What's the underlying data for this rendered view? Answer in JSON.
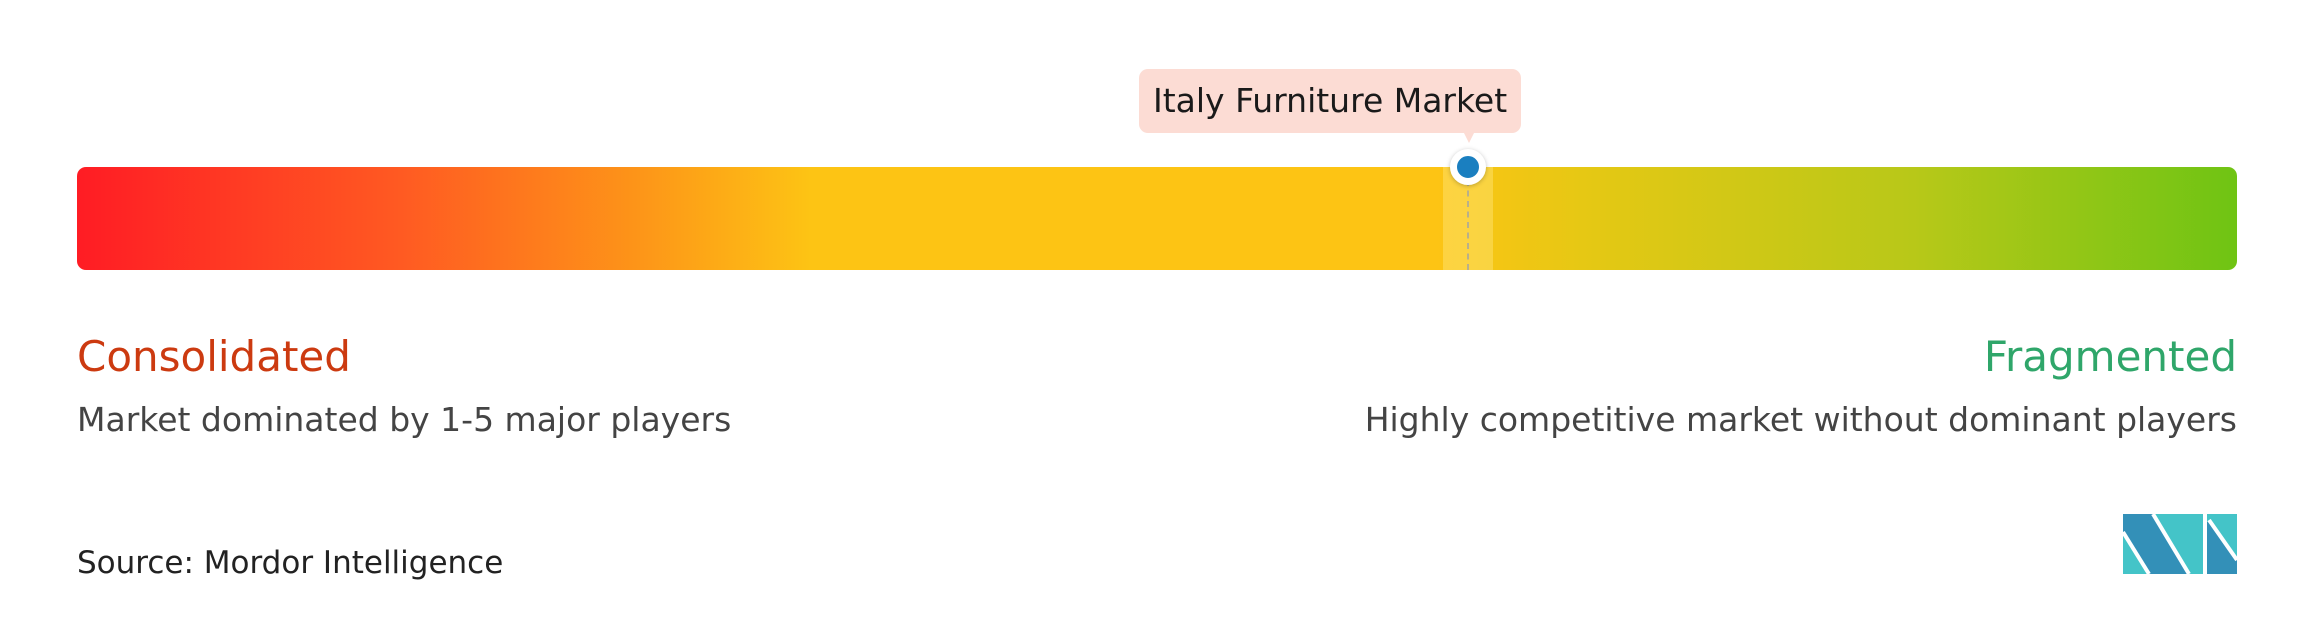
{
  "chart_data": {
    "type": "gradient-scale",
    "marker": {
      "label": "Italy Furniture Market",
      "position": 0.644
    },
    "scale_colors": [
      "#ff1c24",
      "#fdc414",
      "#6fc414"
    ],
    "left": {
      "title": "Consolidated",
      "description": "Market dominated by 1-5 major players",
      "color": "#cc3a10"
    },
    "right": {
      "title": "Fragmented",
      "description": "Highly competitive market without dominant players",
      "color": "#2fa66a"
    },
    "marker_color": "#1a7fc0"
  },
  "source": "Source: Mordor Intelligence",
  "logo": {
    "text": "Mordor Intelligence"
  }
}
